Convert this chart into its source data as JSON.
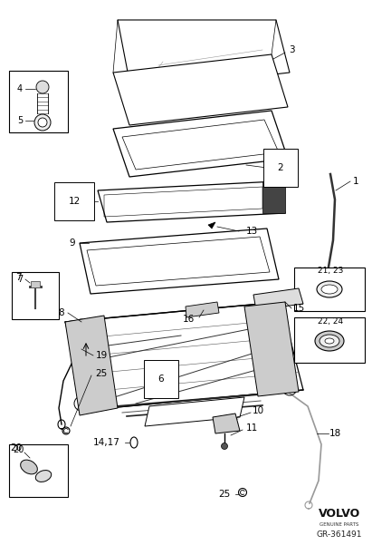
{
  "bg_color": "#ffffff",
  "line_color": "#000000",
  "gray_color": "#888888",
  "volvo_text": "VOLVO",
  "volvo_sub": "GENUINE PARTS",
  "part_number": "GR-361491",
  "figsize": [
    4.11,
    6.01
  ],
  "dpi": 100
}
